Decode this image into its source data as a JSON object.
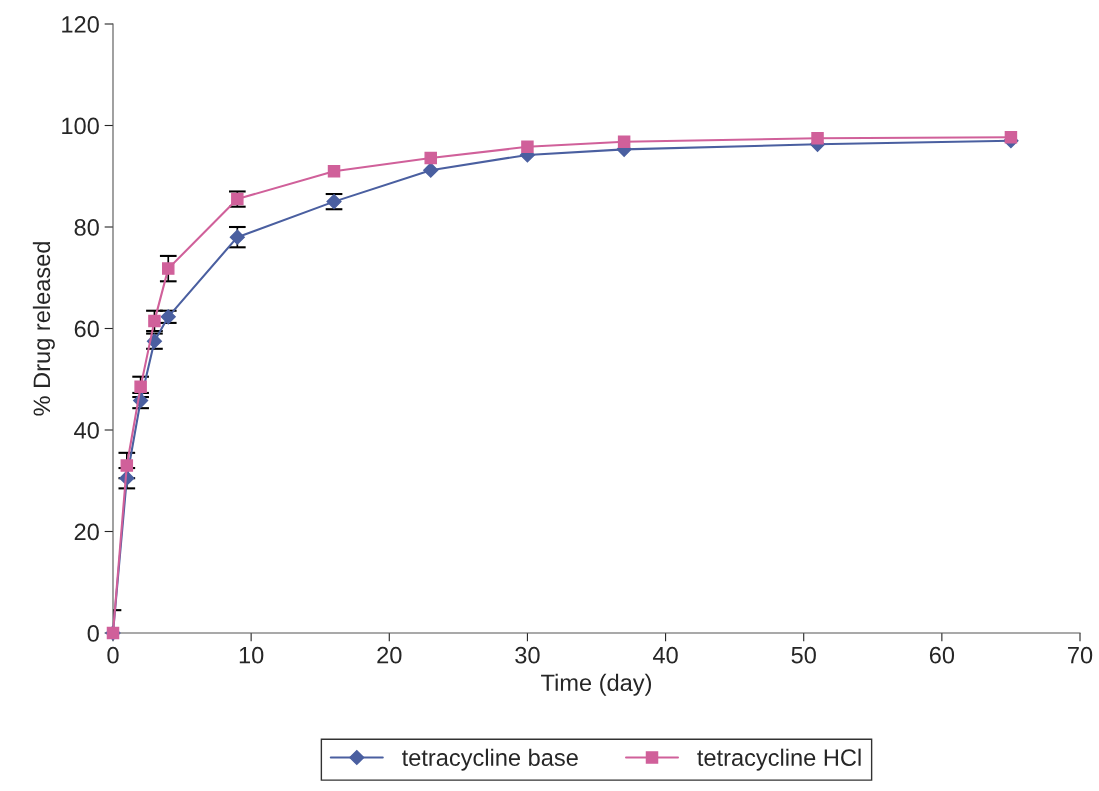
{
  "chart_data": {
    "type": "line",
    "xlabel": "Time (day)",
    "ylabel": "% Drug released",
    "x": [
      0,
      1,
      2,
      3,
      4,
      9,
      16,
      23,
      30,
      37,
      51,
      65
    ],
    "series": [
      {
        "name": "tetracycline base",
        "color": "#4a5fa0",
        "marker": "diamond",
        "values": [
          0,
          30.5,
          45.8,
          57.5,
          62.3,
          78,
          85,
          91.2,
          94.2,
          95.3,
          96.3,
          97
        ],
        "errors": [
          null,
          2,
          1.5,
          1.5,
          1.2,
          2,
          1.5,
          null,
          null,
          null,
          null,
          null
        ]
      },
      {
        "name": "tetracycline HCl",
        "color": "#d0609a",
        "marker": "square",
        "values": [
          0,
          33,
          48.5,
          61.5,
          71.8,
          85.5,
          91,
          93.6,
          95.8,
          96.8,
          97.5,
          97.7
        ],
        "errors": [
          4.5,
          2.5,
          2,
          2,
          2.5,
          1.5,
          null,
          null,
          null,
          null,
          null,
          null
        ]
      }
    ],
    "xlim": [
      0,
      70
    ],
    "xticks": [
      0,
      10,
      20,
      30,
      40,
      50,
      60,
      70
    ],
    "ylim": [
      0,
      120
    ],
    "yticks": [
      0,
      20,
      40,
      60,
      80,
      100,
      120
    ],
    "grid": false,
    "legend": "bottom"
  }
}
